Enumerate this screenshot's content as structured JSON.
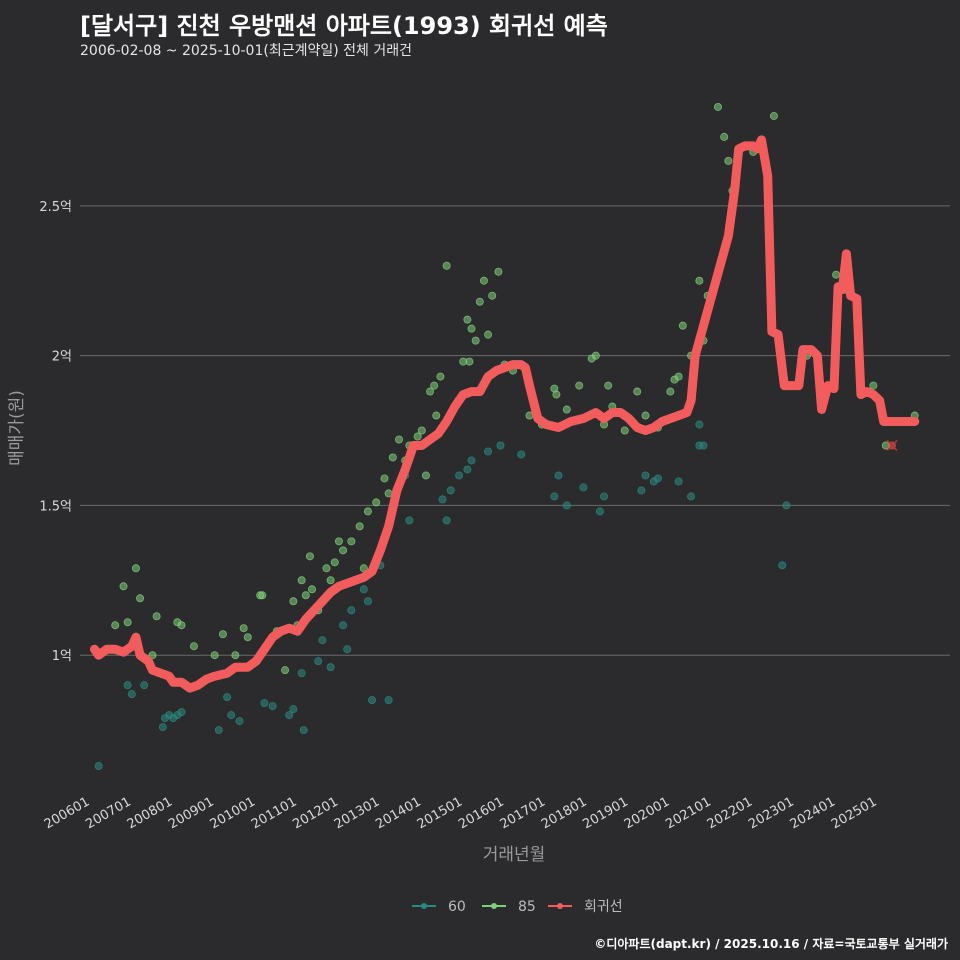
{
  "header": {
    "title": "[달서구] 진천 우방맨션 아파트(1993) 회귀선 예측",
    "subtitle": "2006-02-08 ~ 2025-10-01(최근계약일) 전체 거래건"
  },
  "footer": {
    "credit": "©디아파트(dapt.kr) / 2025.10.16 / 자료=국토교통부 실거래가"
  },
  "colors": {
    "s60": "#2a8a82",
    "s85": "#7fd07a",
    "regression": "#f25c5c",
    "background": "#2b2a2c",
    "grid": "#6a6a6a"
  },
  "chart_data": {
    "type": "scatter",
    "title": "[달서구] 진천 우방맨션 아파트(1993) 회귀선 예측",
    "xlabel": "거래년월",
    "ylabel": "매매가(원)",
    "xlim": [
      2005.75,
      2026.75
    ],
    "ylim": [
      0.55,
      2.92
    ],
    "y_unit": "억",
    "x_ticks": [
      {
        "x": 2006,
        "label": "200601"
      },
      {
        "x": 2007,
        "label": "200701"
      },
      {
        "x": 2008,
        "label": "200801"
      },
      {
        "x": 2009,
        "label": "200901"
      },
      {
        "x": 2010,
        "label": "201001"
      },
      {
        "x": 2011,
        "label": "201101"
      },
      {
        "x": 2012,
        "label": "201201"
      },
      {
        "x": 2013,
        "label": "201301"
      },
      {
        "x": 2014,
        "label": "201401"
      },
      {
        "x": 2015,
        "label": "201501"
      },
      {
        "x": 2016,
        "label": "201601"
      },
      {
        "x": 2017,
        "label": "201701"
      },
      {
        "x": 2018,
        "label": "201801"
      },
      {
        "x": 2019,
        "label": "201901"
      },
      {
        "x": 2020,
        "label": "202001"
      },
      {
        "x": 2021,
        "label": "202101"
      },
      {
        "x": 2022,
        "label": "202201"
      },
      {
        "x": 2023,
        "label": "202301"
      },
      {
        "x": 2024,
        "label": "202401"
      },
      {
        "x": 2025,
        "label": "202501"
      }
    ],
    "y_ticks": [
      {
        "y": 1.0,
        "label": "1억"
      },
      {
        "y": 1.5,
        "label": "1.5억"
      },
      {
        "y": 2.0,
        "label": "2억"
      },
      {
        "y": 2.5,
        "label": "2.5억"
      }
    ],
    "legend": [
      {
        "name": "60",
        "color": "#2a8a82"
      },
      {
        "name": "85",
        "color": "#7fd07a"
      },
      {
        "name": "회귀선",
        "color": "#f25c5c"
      }
    ],
    "series": [
      {
        "name": "60",
        "points": [
          [
            2006.2,
            0.63
          ],
          [
            2006.9,
            0.9
          ],
          [
            2007.0,
            0.87
          ],
          [
            2007.3,
            0.9
          ],
          [
            2007.75,
            0.76
          ],
          [
            2007.8,
            0.79
          ],
          [
            2007.9,
            0.8
          ],
          [
            2008.0,
            0.79
          ],
          [
            2008.1,
            0.8
          ],
          [
            2008.2,
            0.81
          ],
          [
            2009.1,
            0.75
          ],
          [
            2009.3,
            0.86
          ],
          [
            2009.4,
            0.8
          ],
          [
            2009.6,
            0.78
          ],
          [
            2010.2,
            0.84
          ],
          [
            2010.4,
            0.83
          ],
          [
            2010.8,
            0.8
          ],
          [
            2010.9,
            0.82
          ],
          [
            2011.1,
            0.94
          ],
          [
            2011.15,
            0.75
          ],
          [
            2011.5,
            0.98
          ],
          [
            2011.6,
            1.05
          ],
          [
            2011.8,
            0.96
          ],
          [
            2012.1,
            1.1
          ],
          [
            2012.2,
            1.02
          ],
          [
            2012.3,
            1.15
          ],
          [
            2012.6,
            1.22
          ],
          [
            2012.7,
            1.18
          ],
          [
            2012.8,
            0.85
          ],
          [
            2013.0,
            1.3
          ],
          [
            2013.2,
            0.85
          ],
          [
            2013.6,
            1.6
          ],
          [
            2013.7,
            1.45
          ],
          [
            2014.5,
            1.52
          ],
          [
            2014.6,
            1.45
          ],
          [
            2014.7,
            1.55
          ],
          [
            2014.9,
            1.6
          ],
          [
            2015.1,
            1.62
          ],
          [
            2015.2,
            1.65
          ],
          [
            2015.6,
            1.68
          ],
          [
            2015.9,
            1.7
          ],
          [
            2016.4,
            1.67
          ],
          [
            2017.2,
            1.53
          ],
          [
            2017.3,
            1.6
          ],
          [
            2017.5,
            1.5
          ],
          [
            2017.9,
            1.56
          ],
          [
            2018.3,
            1.48
          ],
          [
            2018.4,
            1.53
          ],
          [
            2019.3,
            1.55
          ],
          [
            2019.4,
            1.6
          ],
          [
            2019.6,
            1.58
          ],
          [
            2019.7,
            1.59
          ],
          [
            2020.2,
            1.58
          ],
          [
            2020.5,
            1.53
          ],
          [
            2020.7,
            1.7
          ],
          [
            2020.8,
            1.7
          ],
          [
            2020.7,
            1.77
          ],
          [
            2022.7,
            1.3
          ],
          [
            2022.8,
            1.5
          ]
        ]
      },
      {
        "name": "85",
        "points": [
          [
            2006.6,
            1.1
          ],
          [
            2006.8,
            1.23
          ],
          [
            2006.9,
            1.11
          ],
          [
            2007.1,
            1.29
          ],
          [
            2007.2,
            1.19
          ],
          [
            2007.5,
            1.0
          ],
          [
            2007.6,
            1.13
          ],
          [
            2008.1,
            1.11
          ],
          [
            2008.2,
            1.1
          ],
          [
            2008.5,
            1.03
          ],
          [
            2009.0,
            1.0
          ],
          [
            2009.2,
            1.07
          ],
          [
            2009.5,
            1.0
          ],
          [
            2009.7,
            1.09
          ],
          [
            2009.8,
            1.06
          ],
          [
            2010.1,
            1.2
          ],
          [
            2010.15,
            1.2
          ],
          [
            2010.5,
            1.08
          ],
          [
            2010.7,
            0.95
          ],
          [
            2010.9,
            1.18
          ],
          [
            2011.0,
            1.1
          ],
          [
            2011.1,
            1.25
          ],
          [
            2011.2,
            1.2
          ],
          [
            2011.3,
            1.33
          ],
          [
            2011.35,
            1.22
          ],
          [
            2011.5,
            1.15
          ],
          [
            2011.7,
            1.29
          ],
          [
            2011.8,
            1.25
          ],
          [
            2011.9,
            1.31
          ],
          [
            2012.0,
            1.38
          ],
          [
            2012.1,
            1.35
          ],
          [
            2012.3,
            1.38
          ],
          [
            2012.5,
            1.43
          ],
          [
            2012.6,
            1.29
          ],
          [
            2012.7,
            1.48
          ],
          [
            2012.9,
            1.51
          ],
          [
            2013.1,
            1.59
          ],
          [
            2013.2,
            1.54
          ],
          [
            2013.3,
            1.66
          ],
          [
            2013.45,
            1.72
          ],
          [
            2013.6,
            1.65
          ],
          [
            2013.7,
            1.7
          ],
          [
            2013.9,
            1.73
          ],
          [
            2014.0,
            1.75
          ],
          [
            2014.1,
            1.6
          ],
          [
            2014.2,
            1.88
          ],
          [
            2014.3,
            1.9
          ],
          [
            2014.35,
            1.8
          ],
          [
            2014.45,
            1.93
          ],
          [
            2014.6,
            2.3
          ],
          [
            2015.0,
            1.98
          ],
          [
            2015.1,
            2.12
          ],
          [
            2015.15,
            1.98
          ],
          [
            2015.2,
            2.09
          ],
          [
            2015.3,
            2.05
          ],
          [
            2015.4,
            2.18
          ],
          [
            2015.5,
            2.25
          ],
          [
            2015.6,
            2.07
          ],
          [
            2015.7,
            2.2
          ],
          [
            2015.85,
            2.28
          ],
          [
            2016.0,
            1.97
          ],
          [
            2016.2,
            1.95
          ],
          [
            2016.4,
            1.97
          ],
          [
            2016.6,
            1.8
          ],
          [
            2016.9,
            1.77
          ],
          [
            2017.2,
            1.89
          ],
          [
            2017.25,
            1.87
          ],
          [
            2017.5,
            1.82
          ],
          [
            2017.8,
            1.9
          ],
          [
            2018.1,
            1.99
          ],
          [
            2018.2,
            2.0
          ],
          [
            2018.4,
            1.77
          ],
          [
            2018.5,
            1.9
          ],
          [
            2018.6,
            1.83
          ],
          [
            2018.9,
            1.75
          ],
          [
            2019.2,
            1.88
          ],
          [
            2019.4,
            1.8
          ],
          [
            2019.7,
            1.76
          ],
          [
            2020.0,
            1.88
          ],
          [
            2020.1,
            1.92
          ],
          [
            2020.2,
            1.93
          ],
          [
            2020.3,
            2.1
          ],
          [
            2020.5,
            2.0
          ],
          [
            2020.7,
            2.25
          ],
          [
            2020.8,
            2.05
          ],
          [
            2020.9,
            2.2
          ],
          [
            2021.0,
            2.2
          ],
          [
            2021.15,
            2.83
          ],
          [
            2021.3,
            2.73
          ],
          [
            2021.4,
            2.65
          ],
          [
            2021.5,
            2.55
          ],
          [
            2021.8,
            2.7
          ],
          [
            2022.0,
            2.68
          ],
          [
            2022.5,
            2.8
          ],
          [
            2023.3,
            2.0
          ],
          [
            2023.7,
            1.85
          ],
          [
            2024.0,
            2.27
          ],
          [
            2024.2,
            2.22
          ],
          [
            2024.9,
            1.9
          ],
          [
            2025.2,
            1.7
          ],
          [
            2025.9,
            1.8
          ]
        ]
      }
    ],
    "regression": [
      [
        2006.1,
        1.02
      ],
      [
        2006.2,
        1.0
      ],
      [
        2006.4,
        1.02
      ],
      [
        2006.6,
        1.02
      ],
      [
        2006.8,
        1.01
      ],
      [
        2007.0,
        1.03
      ],
      [
        2007.1,
        1.06
      ],
      [
        2007.2,
        1.0
      ],
      [
        2007.4,
        0.98
      ],
      [
        2007.5,
        0.95
      ],
      [
        2007.7,
        0.94
      ],
      [
        2007.9,
        0.93
      ],
      [
        2008.0,
        0.91
      ],
      [
        2008.2,
        0.91
      ],
      [
        2008.4,
        0.89
      ],
      [
        2008.6,
        0.9
      ],
      [
        2008.8,
        0.92
      ],
      [
        2009.0,
        0.93
      ],
      [
        2009.3,
        0.94
      ],
      [
        2009.5,
        0.96
      ],
      [
        2009.8,
        0.96
      ],
      [
        2010.0,
        0.98
      ],
      [
        2010.2,
        1.02
      ],
      [
        2010.4,
        1.06
      ],
      [
        2010.6,
        1.08
      ],
      [
        2010.8,
        1.09
      ],
      [
        2011.0,
        1.08
      ],
      [
        2011.2,
        1.12
      ],
      [
        2011.4,
        1.15
      ],
      [
        2011.6,
        1.18
      ],
      [
        2011.8,
        1.21
      ],
      [
        2012.0,
        1.23
      ],
      [
        2012.2,
        1.24
      ],
      [
        2012.4,
        1.25
      ],
      [
        2012.6,
        1.26
      ],
      [
        2012.8,
        1.28
      ],
      [
        2013.0,
        1.35
      ],
      [
        2013.2,
        1.43
      ],
      [
        2013.4,
        1.55
      ],
      [
        2013.6,
        1.62
      ],
      [
        2013.8,
        1.7
      ],
      [
        2014.0,
        1.7
      ],
      [
        2014.2,
        1.72
      ],
      [
        2014.4,
        1.74
      ],
      [
        2014.6,
        1.78
      ],
      [
        2014.8,
        1.83
      ],
      [
        2015.0,
        1.87
      ],
      [
        2015.2,
        1.88
      ],
      [
        2015.4,
        1.88
      ],
      [
        2015.6,
        1.93
      ],
      [
        2015.8,
        1.95
      ],
      [
        2016.0,
        1.96
      ],
      [
        2016.2,
        1.97
      ],
      [
        2016.4,
        1.97
      ],
      [
        2016.5,
        1.96
      ],
      [
        2016.6,
        1.9
      ],
      [
        2016.8,
        1.79
      ],
      [
        2017.0,
        1.77
      ],
      [
        2017.3,
        1.76
      ],
      [
        2017.6,
        1.78
      ],
      [
        2017.9,
        1.79
      ],
      [
        2018.2,
        1.81
      ],
      [
        2018.4,
        1.79
      ],
      [
        2018.6,
        1.81
      ],
      [
        2018.8,
        1.81
      ],
      [
        2019.0,
        1.79
      ],
      [
        2019.2,
        1.76
      ],
      [
        2019.4,
        1.75
      ],
      [
        2019.6,
        1.76
      ],
      [
        2019.8,
        1.78
      ],
      [
        2020.0,
        1.79
      ],
      [
        2020.2,
        1.8
      ],
      [
        2020.4,
        1.81
      ],
      [
        2020.5,
        1.85
      ],
      [
        2020.6,
        2.0
      ],
      [
        2020.8,
        2.1
      ],
      [
        2021.0,
        2.2
      ],
      [
        2021.2,
        2.3
      ],
      [
        2021.4,
        2.4
      ],
      [
        2021.55,
        2.55
      ],
      [
        2021.65,
        2.69
      ],
      [
        2021.8,
        2.7
      ],
      [
        2022.0,
        2.7
      ],
      [
        2022.1,
        2.69
      ],
      [
        2022.2,
        2.72
      ],
      [
        2022.35,
        2.6
      ],
      [
        2022.45,
        2.08
      ],
      [
        2022.6,
        2.07
      ],
      [
        2022.75,
        1.9
      ],
      [
        2022.9,
        1.9
      ],
      [
        2023.1,
        1.9
      ],
      [
        2023.2,
        2.02
      ],
      [
        2023.4,
        2.02
      ],
      [
        2023.55,
        2.0
      ],
      [
        2023.65,
        1.82
      ],
      [
        2023.8,
        1.9
      ],
      [
        2023.95,
        1.89
      ],
      [
        2024.05,
        2.23
      ],
      [
        2024.15,
        2.22
      ],
      [
        2024.25,
        2.34
      ],
      [
        2024.35,
        2.2
      ],
      [
        2024.5,
        2.19
      ],
      [
        2024.6,
        1.87
      ],
      [
        2024.75,
        1.88
      ],
      [
        2024.9,
        1.87
      ],
      [
        2025.05,
        1.85
      ],
      [
        2025.15,
        1.78
      ],
      [
        2025.4,
        1.78
      ],
      [
        2025.7,
        1.78
      ],
      [
        2025.9,
        1.78
      ]
    ],
    "prediction_marker": [
      2025.35,
      1.7
    ]
  }
}
